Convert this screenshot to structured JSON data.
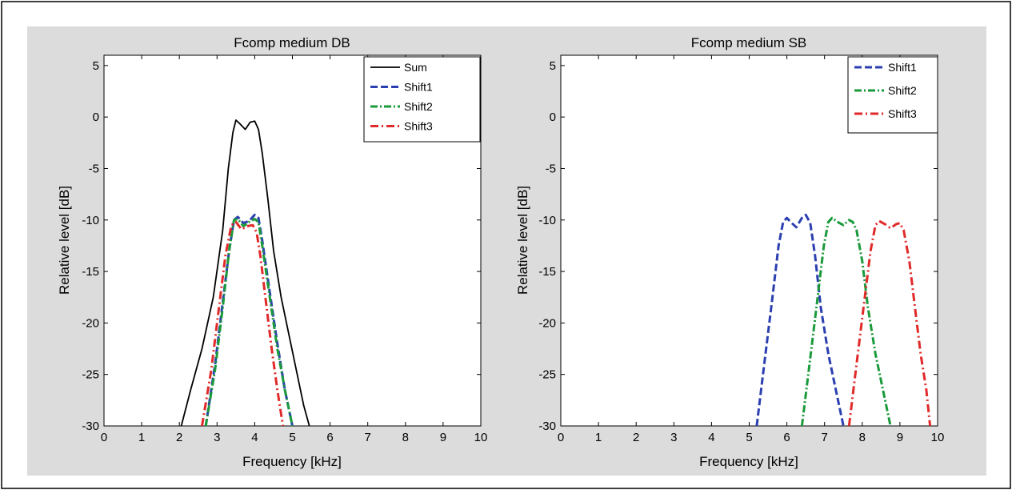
{
  "chart_data": [
    {
      "type": "line",
      "title": "Fcomp medium DB",
      "xlabel": "Frequency [kHz]",
      "ylabel": "Relative level [dB]",
      "xlim": [
        0,
        10
      ],
      "ylim": [
        -30,
        6
      ],
      "xticks": [
        "0",
        "1",
        "2",
        "3",
        "4",
        "5",
        "6",
        "7",
        "8",
        "9",
        "10"
      ],
      "yticks": [
        "5",
        "0",
        "-5",
        "-10",
        "-15",
        "-20",
        "-25",
        "-30"
      ],
      "grid": false,
      "legend_position": "top-right",
      "series": [
        {
          "name": "Sum",
          "color": "#000000",
          "style": "solid",
          "x": [
            2.05,
            2.3,
            2.6,
            2.9,
            3.15,
            3.3,
            3.42,
            3.5,
            3.62,
            3.75,
            3.88,
            4.0,
            4.1,
            4.2,
            4.35,
            4.5,
            4.7,
            4.9,
            5.1,
            5.3,
            5.45
          ],
          "y": [
            -30,
            -26.5,
            -22.5,
            -17.5,
            -11,
            -5,
            -1.5,
            -0.3,
            -0.7,
            -1.2,
            -0.5,
            -0.4,
            -1.2,
            -3.5,
            -8,
            -13,
            -17.5,
            -21,
            -24.5,
            -28,
            -30
          ]
        },
        {
          "name": "Shift1",
          "color": "#2b3fb0",
          "style": "dashed",
          "x": [
            2.7,
            2.95,
            3.15,
            3.32,
            3.45,
            3.55,
            3.7,
            3.85,
            4.0,
            4.1,
            4.2,
            4.4,
            4.6,
            4.8,
            5.0
          ],
          "y": [
            -30,
            -24,
            -18,
            -13,
            -10,
            -9.7,
            -10.3,
            -10.1,
            -9.5,
            -9.8,
            -12,
            -17,
            -22,
            -26.5,
            -30
          ]
        },
        {
          "name": "Shift2",
          "color": "#1a9a3a",
          "style": "dashdot",
          "x": [
            2.7,
            2.95,
            3.15,
            3.32,
            3.45,
            3.55,
            3.7,
            3.85,
            4.0,
            4.1,
            4.2,
            4.4,
            4.6,
            4.8,
            5.0
          ],
          "y": [
            -30,
            -24.5,
            -18.5,
            -13,
            -10,
            -9.9,
            -10.6,
            -10.2,
            -9.9,
            -10.2,
            -12.5,
            -17.5,
            -22.5,
            -26.5,
            -30
          ]
        },
        {
          "name": "Shift3",
          "color": "#e02a2a",
          "style": "dashdotsparse",
          "x": [
            2.6,
            2.85,
            3.05,
            3.22,
            3.38,
            3.5,
            3.65,
            3.8,
            3.95,
            4.05,
            4.15,
            4.3,
            4.45,
            4.6,
            4.75
          ],
          "y": [
            -30,
            -24.5,
            -18.5,
            -13.5,
            -10.5,
            -10.2,
            -10.9,
            -10.6,
            -10.5,
            -11.2,
            -13.5,
            -18,
            -22.5,
            -26.5,
            -30
          ]
        }
      ]
    },
    {
      "type": "line",
      "title": "Fcomp medium SB",
      "xlabel": "Frequency [kHz]",
      "ylabel": "Relative level [dB]",
      "xlim": [
        0,
        10
      ],
      "ylim": [
        -30,
        6
      ],
      "xticks": [
        "0",
        "1",
        "2",
        "3",
        "4",
        "5",
        "6",
        "7",
        "8",
        "9",
        "10"
      ],
      "yticks": [
        "5",
        "0",
        "-5",
        "-10",
        "-15",
        "-20",
        "-25",
        "-30"
      ],
      "grid": false,
      "legend_position": "top-right",
      "series": [
        {
          "name": "Shift1",
          "color": "#2b3fb0",
          "style": "dashed",
          "x": [
            5.2,
            5.4,
            5.6,
            5.78,
            5.9,
            6.0,
            6.1,
            6.25,
            6.4,
            6.5,
            6.62,
            6.75,
            6.9,
            7.1,
            7.3,
            7.5
          ],
          "y": [
            -30,
            -24,
            -18,
            -12.5,
            -10.2,
            -9.8,
            -10.2,
            -10.7,
            -9.8,
            -9.5,
            -10.3,
            -13.5,
            -18.5,
            -23,
            -26.5,
            -30
          ]
        },
        {
          "name": "Shift2",
          "color": "#1a9a3a",
          "style": "dashdot",
          "x": [
            6.4,
            6.6,
            6.8,
            6.98,
            7.1,
            7.2,
            7.35,
            7.5,
            7.65,
            7.75,
            7.85,
            8.0,
            8.15,
            8.35,
            8.55,
            8.75
          ],
          "y": [
            -30,
            -24,
            -18,
            -12.5,
            -10.2,
            -9.8,
            -10.2,
            -10.5,
            -10,
            -10.2,
            -11,
            -14,
            -18.5,
            -23,
            -26.5,
            -30
          ]
        },
        {
          "name": "Shift3",
          "color": "#e02a2a",
          "style": "dashdotsparse",
          "x": [
            7.65,
            7.85,
            8.05,
            8.22,
            8.35,
            8.45,
            8.6,
            8.75,
            8.9,
            9.0,
            9.1,
            9.25,
            9.4,
            9.55,
            9.7,
            9.8
          ],
          "y": [
            -30,
            -24,
            -18,
            -13,
            -10.5,
            -10.1,
            -10.4,
            -10.8,
            -10.4,
            -10.3,
            -11,
            -14,
            -18.5,
            -23,
            -26.5,
            -30
          ]
        }
      ]
    }
  ]
}
